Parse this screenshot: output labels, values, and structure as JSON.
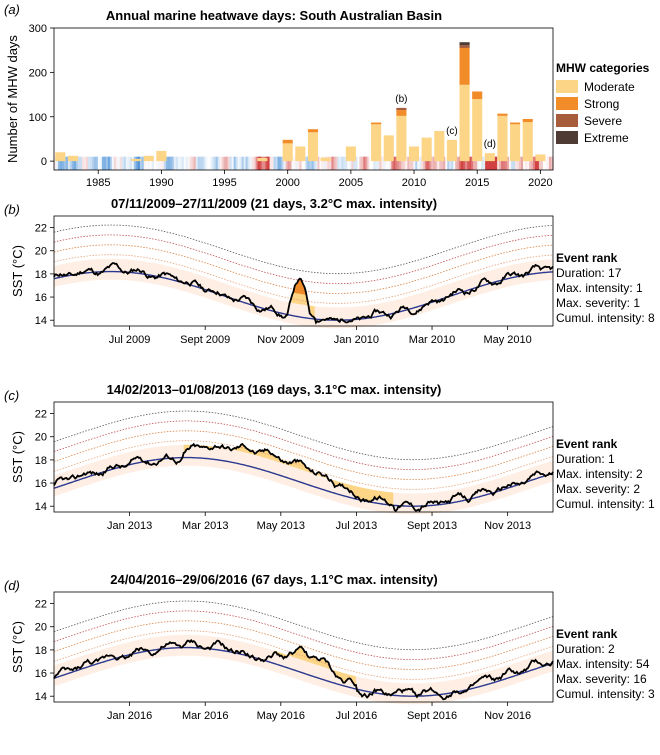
{
  "chart_data": [
    {
      "panel": "(a)",
      "type": "bar",
      "title": "Annual marine heatwave days: South Australian Basin",
      "ylabel": "Number of MHW days",
      "ylim": [
        -20,
        300
      ],
      "yticks": [
        0,
        100,
        200,
        300
      ],
      "xlim": [
        1981.5,
        2021
      ],
      "xticks": [
        1985,
        1990,
        1995,
        2000,
        2005,
        2010,
        2015,
        2020
      ],
      "legend_title": "MHW categories",
      "legend_position": "right",
      "series": [
        {
          "name": "Moderate",
          "color": "#fdd587"
        },
        {
          "name": "Strong",
          "color": "#f28c28"
        },
        {
          "name": "Severe",
          "color": "#a75d3c"
        },
        {
          "name": "Extreme",
          "color": "#4d3b34"
        }
      ],
      "years": [
        1982,
        1983,
        1984,
        1985,
        1986,
        1987,
        1988,
        1989,
        1990,
        1991,
        1992,
        1993,
        1994,
        1995,
        1996,
        1997,
        1998,
        1999,
        2000,
        2001,
        2002,
        2003,
        2004,
        2005,
        2006,
        2007,
        2008,
        2009,
        2010,
        2011,
        2012,
        2013,
        2014,
        2015,
        2016,
        2017,
        2018,
        2019,
        2020
      ],
      "moderate": [
        20,
        12,
        0,
        0,
        0,
        0,
        5,
        12,
        23,
        0,
        0,
        0,
        0,
        0,
        0,
        0,
        7,
        0,
        40,
        33,
        65,
        8,
        0,
        33,
        0,
        83,
        58,
        102,
        33,
        53,
        68,
        48,
        172,
        140,
        18,
        102,
        83,
        88,
        15
      ],
      "strong": [
        0,
        0,
        0,
        0,
        0,
        0,
        0,
        0,
        0,
        0,
        0,
        0,
        0,
        0,
        0,
        0,
        0,
        0,
        8,
        0,
        7,
        0,
        0,
        0,
        0,
        4,
        0,
        13,
        0,
        0,
        0,
        0,
        83,
        17,
        0,
        5,
        4,
        7,
        0
      ],
      "severe": [
        0,
        0,
        0,
        0,
        0,
        0,
        0,
        0,
        0,
        0,
        0,
        0,
        0,
        0,
        0,
        0,
        0,
        0,
        0,
        0,
        0,
        0,
        0,
        0,
        0,
        0,
        0,
        5,
        0,
        0,
        0,
        0,
        6,
        0,
        0,
        0,
        0,
        0,
        0
      ],
      "extreme": [
        0,
        0,
        0,
        0,
        0,
        0,
        0,
        0,
        0,
        0,
        0,
        0,
        0,
        0,
        0,
        0,
        0,
        0,
        0,
        0,
        0,
        0,
        0,
        0,
        0,
        0,
        0,
        0,
        0,
        0,
        0,
        0,
        7,
        0,
        0,
        0,
        0,
        0,
        0
      ],
      "annotations": [
        {
          "text": "(b)",
          "x": 2009.5
        },
        {
          "text": "(c)",
          "x": 2013.5
        },
        {
          "text": "(d)",
          "x": 2016.5
        }
      ]
    },
    {
      "panel": "(b)",
      "type": "line",
      "title": "07/11/2009–27/11/2009 (21 days, 3.2°C max. intensity)",
      "ylabel": "SST (°C)",
      "ylim": [
        13.5,
        23
      ],
      "yticks": [
        14,
        16,
        18,
        20,
        22
      ],
      "xticks": [
        "Jul 2009",
        "Sept 2009",
        "Nov 2009",
        "Jan 2010",
        "Mar 2010",
        "May 2010"
      ],
      "x_start": "May 2009",
      "x_end": "Jun 2010",
      "climatology": {
        "phase_peak_month": 13.5,
        "mean": 16.3,
        "amp": 2.1
      },
      "event_start_month": 6.2,
      "event_end_month": 6.9,
      "rank_title": "Event rank",
      "ranks": [
        "Duration: 17",
        "Max. intensity: 1",
        "Max. severity: 1",
        "Cumul. intensity: 8"
      ]
    },
    {
      "panel": "(c)",
      "type": "line",
      "title": "14/02/2013–01/08/2013 (169 days, 3.1°C max. intensity)",
      "ylabel": "SST (°C)",
      "ylim": [
        13.5,
        23
      ],
      "yticks": [
        14,
        16,
        18,
        20,
        22
      ],
      "xticks": [
        "Jan 2013",
        "Mar 2013",
        "May 2013",
        "Jul 2013",
        "Sept 2013",
        "Nov 2013"
      ],
      "x_start": "Nov 2012",
      "x_end": "Dec 2013",
      "climatology": {
        "phase_peak_month": 3.5,
        "mean": 16.3,
        "amp": 2.1
      },
      "event_start_month": 3.4,
      "event_end_month": 9.0,
      "rank_title": "Event rank",
      "ranks": [
        "Duration: 1",
        "Max. intensity: 2",
        "Max. severity: 2",
        "Cumul. intensity: 1"
      ]
    },
    {
      "panel": "(d)",
      "type": "line",
      "title": "24/04/2016–29/06/2016 (67 days, 1.1°C max. intensity)",
      "ylabel": "SST (°C)",
      "ylim": [
        13.5,
        23
      ],
      "yticks": [
        14,
        16,
        18,
        20,
        22
      ],
      "xticks": [
        "Jan 2016",
        "Mar 2016",
        "May 2016",
        "Jul 2016",
        "Sept 2016",
        "Nov 2016"
      ],
      "x_start": "Nov 2015",
      "x_end": "Dec 2016",
      "climatology": {
        "phase_peak_month": 3.5,
        "mean": 16.3,
        "amp": 2.1
      },
      "event_start_month": 5.8,
      "event_end_month": 8.0,
      "rank_title": "Event rank",
      "ranks": [
        "Duration: 2",
        "Max. intensity: 54",
        "Max. severity: 16",
        "Cumul. intensity: 3"
      ]
    }
  ],
  "colors": {
    "moderate": "#fdd587",
    "strong": "#f28c28",
    "severe": "#a75d3c",
    "extreme": "#4d3b34",
    "climatology": "#2b3990",
    "sst": "#000000",
    "threshold_light": "#f7d0b8"
  }
}
